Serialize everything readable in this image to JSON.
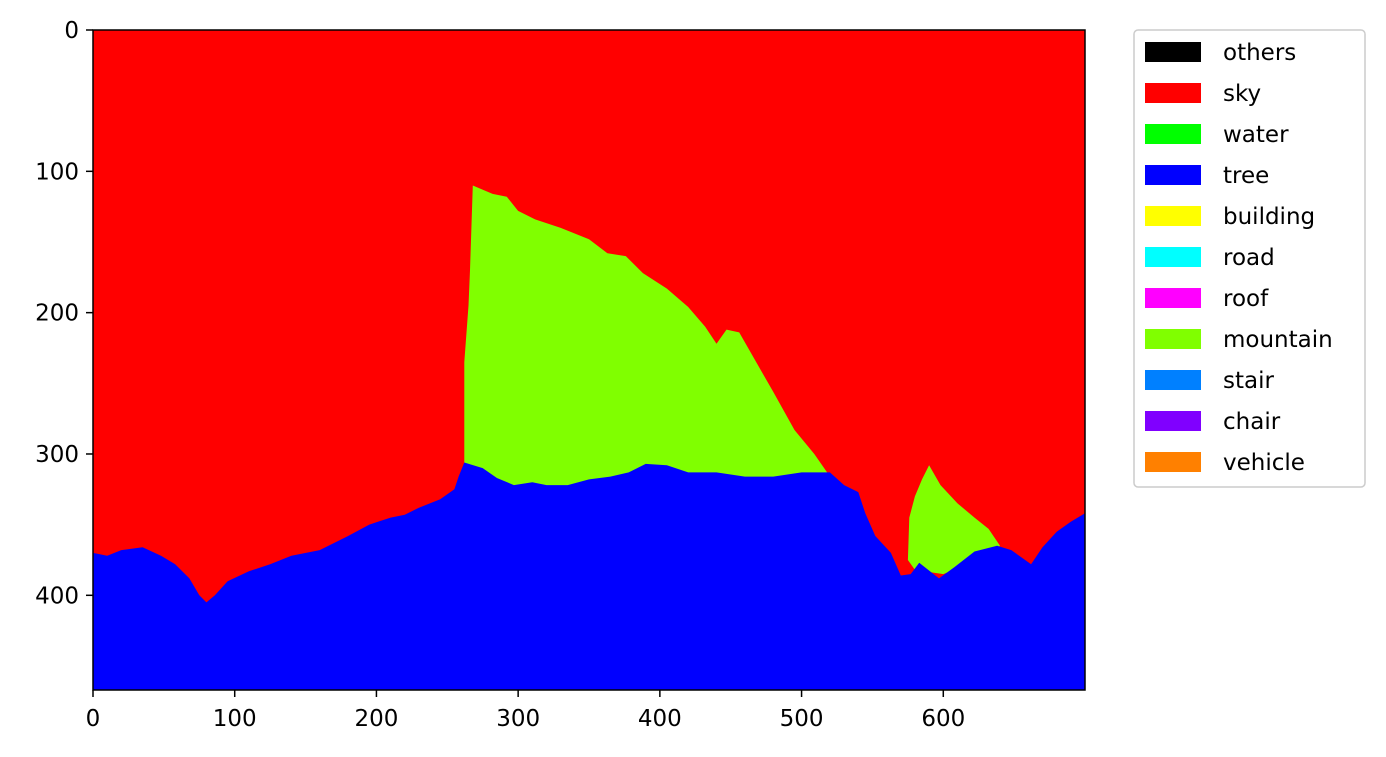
{
  "chart_data": {
    "type": "heatmap",
    "title": "",
    "xlabel": "",
    "ylabel": "",
    "xlim": [
      0,
      700
    ],
    "ylim": [
      467,
      0
    ],
    "xticks": [
      0,
      100,
      200,
      300,
      400,
      500,
      600
    ],
    "yticks": [
      0,
      100,
      200,
      300,
      400
    ],
    "grid": false,
    "legend_position": "outside-right-top",
    "legend": [
      {
        "label": "others",
        "color": "#000000"
      },
      {
        "label": "sky",
        "color": "#ff0000"
      },
      {
        "label": "water",
        "color": "#00ff00"
      },
      {
        "label": "tree",
        "color": "#0000ff"
      },
      {
        "label": "building",
        "color": "#ffff00"
      },
      {
        "label": "road",
        "color": "#00ffff"
      },
      {
        "label": "roof",
        "color": "#ff00ff"
      },
      {
        "label": "mountain",
        "color": "#80ff00"
      },
      {
        "label": "stair",
        "color": "#0080ff"
      },
      {
        "label": "chair",
        "color": "#8000ff"
      },
      {
        "label": "vehicle",
        "color": "#ff8000"
      }
    ],
    "regions": [
      {
        "class": "sky",
        "color": "#ff0000",
        "polygon": [
          [
            0,
            0
          ],
          [
            700,
            0
          ],
          [
            700,
            467
          ],
          [
            0,
            467
          ]
        ]
      },
      {
        "class": "mountain",
        "color": "#80ff00",
        "polygon": [
          [
            268,
            110
          ],
          [
            282,
            116
          ],
          [
            292,
            118
          ],
          [
            300,
            128
          ],
          [
            312,
            134
          ],
          [
            330,
            140
          ],
          [
            350,
            148
          ],
          [
            363,
            158
          ],
          [
            376,
            160
          ],
          [
            388,
            172
          ],
          [
            405,
            183
          ],
          [
            420,
            196
          ],
          [
            432,
            210
          ],
          [
            440,
            222
          ],
          [
            447,
            212
          ],
          [
            456,
            214
          ],
          [
            468,
            235
          ],
          [
            480,
            256
          ],
          [
            495,
            283
          ],
          [
            509,
            300
          ],
          [
            518,
            313
          ],
          [
            520,
            318
          ],
          [
            500,
            330
          ],
          [
            440,
            330
          ],
          [
            360,
            330
          ],
          [
            290,
            330
          ],
          [
            262,
            320
          ],
          [
            262,
            235
          ],
          [
            265,
            195
          ],
          [
            266,
            170
          ]
        ]
      },
      {
        "class": "mountain",
        "color": "#80ff00",
        "polygon": [
          [
            590,
            308
          ],
          [
            598,
            322
          ],
          [
            610,
            335
          ],
          [
            622,
            345
          ],
          [
            632,
            353
          ],
          [
            640,
            365
          ],
          [
            632,
            372
          ],
          [
            600,
            385
          ],
          [
            580,
            382
          ],
          [
            575,
            375
          ],
          [
            576,
            345
          ],
          [
            580,
            330
          ],
          [
            585,
            318
          ]
        ]
      },
      {
        "class": "tree",
        "color": "#0000ff",
        "polygon": [
          [
            0,
            370
          ],
          [
            10,
            372
          ],
          [
            20,
            368
          ],
          [
            35,
            366
          ],
          [
            48,
            372
          ],
          [
            58,
            378
          ],
          [
            68,
            388
          ],
          [
            75,
            400
          ],
          [
            80,
            405
          ],
          [
            86,
            400
          ],
          [
            95,
            390
          ],
          [
            110,
            383
          ],
          [
            125,
            378
          ],
          [
            140,
            372
          ],
          [
            160,
            368
          ],
          [
            180,
            358
          ],
          [
            195,
            350
          ],
          [
            210,
            345
          ],
          [
            220,
            343
          ],
          [
            230,
            338
          ],
          [
            245,
            332
          ],
          [
            255,
            325
          ],
          [
            258,
            316
          ],
          [
            262,
            306
          ],
          [
            275,
            310
          ],
          [
            285,
            317
          ],
          [
            297,
            322
          ],
          [
            310,
            320
          ],
          [
            320,
            322
          ],
          [
            335,
            322
          ],
          [
            350,
            318
          ],
          [
            365,
            316
          ],
          [
            378,
            313
          ],
          [
            390,
            307
          ],
          [
            405,
            308
          ],
          [
            420,
            313
          ],
          [
            440,
            313
          ],
          [
            460,
            316
          ],
          [
            480,
            316
          ],
          [
            500,
            313
          ],
          [
            520,
            313
          ],
          [
            530,
            322
          ],
          [
            540,
            327
          ],
          [
            545,
            342
          ],
          [
            552,
            358
          ],
          [
            563,
            370
          ],
          [
            570,
            386
          ],
          [
            577,
            385
          ],
          [
            583,
            377
          ],
          [
            597,
            388
          ],
          [
            608,
            380
          ],
          [
            622,
            369
          ],
          [
            638,
            365
          ],
          [
            648,
            368
          ],
          [
            662,
            378
          ],
          [
            670,
            366
          ],
          [
            680,
            355
          ],
          [
            690,
            348
          ],
          [
            700,
            342
          ],
          [
            700,
            467
          ],
          [
            0,
            467
          ]
        ]
      }
    ]
  }
}
